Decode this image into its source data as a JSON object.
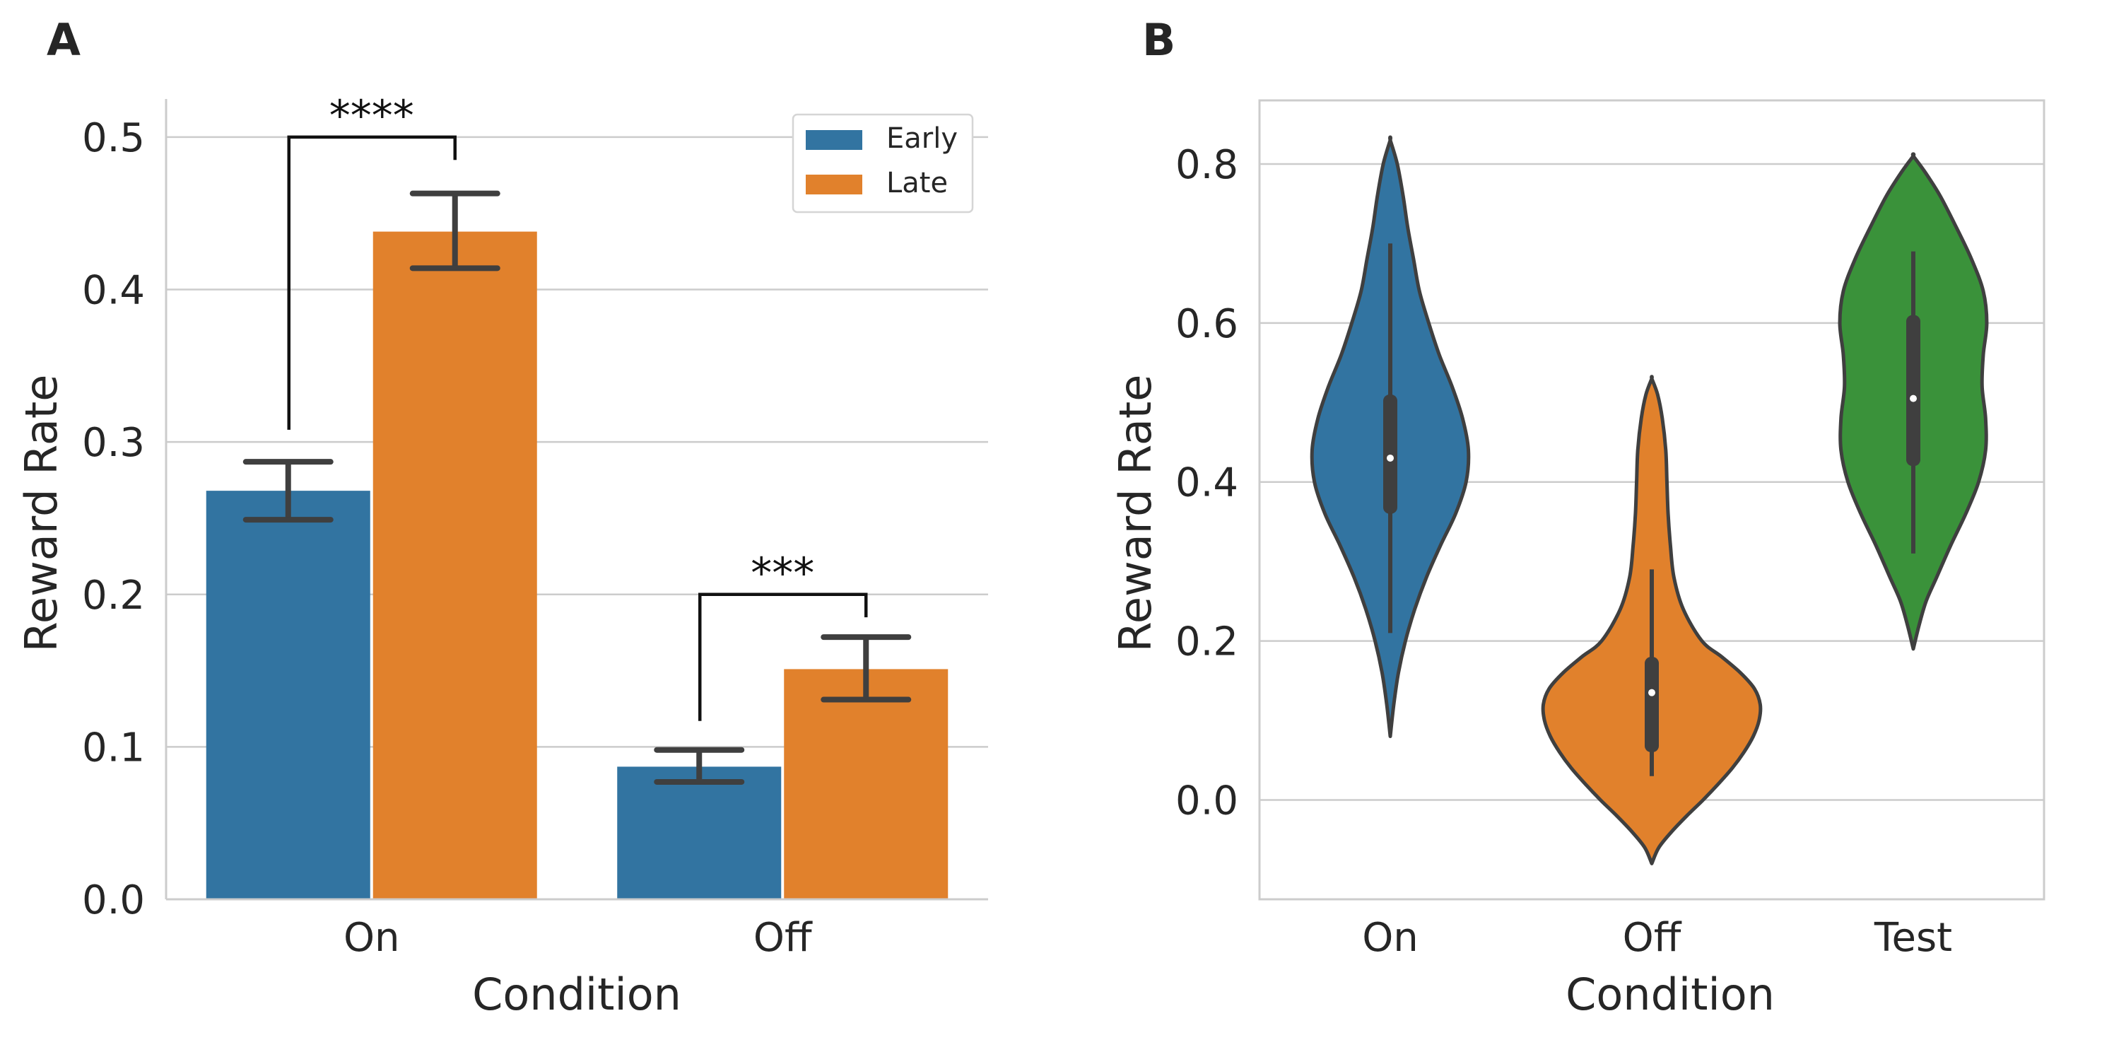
{
  "panels": {
    "a_label": "A",
    "b_label": "B"
  },
  "chart_data": [
    {
      "type": "bar",
      "panel": "A",
      "xlabel": "Condition",
      "ylabel": "Reward Rate",
      "ylim": [
        0,
        0.525
      ],
      "yticks": [
        "0.0",
        "0.1",
        "0.2",
        "0.3",
        "0.4",
        "0.5"
      ],
      "grid": "horizontal",
      "legend_position": "top-right",
      "categories": [
        "On",
        "Off"
      ],
      "series": [
        {
          "name": "Early",
          "color": "#3274a1",
          "values": [
            0.268,
            0.087
          ],
          "err_low": [
            0.249,
            0.077
          ],
          "err_high": [
            0.287,
            0.098
          ]
        },
        {
          "name": "Late",
          "color": "#e1812c",
          "values": [
            0.438,
            0.151
          ],
          "err_low": [
            0.414,
            0.131
          ],
          "err_high": [
            0.463,
            0.172
          ]
        }
      ],
      "significance": [
        {
          "category": "On",
          "label": "****",
          "bracket_y": 0.5,
          "left_y": 0.308,
          "right_y": 0.485
        },
        {
          "category": "Off",
          "label": "***",
          "bracket_y": 0.2,
          "left_y": 0.117,
          "right_y": 0.185
        }
      ]
    },
    {
      "type": "violin",
      "panel": "B",
      "xlabel": "Condition",
      "ylabel": "Reward Rate",
      "ylim": [
        -0.125,
        0.88
      ],
      "yticks": [
        "0.0",
        "0.2",
        "0.4",
        "0.6",
        "0.8"
      ],
      "grid": "horizontal",
      "categories": [
        "On",
        "Off",
        "Test"
      ],
      "colors": [
        "#3274a1",
        "#e1812c",
        "#3a923a"
      ],
      "violins": [
        {
          "name": "On",
          "min_extent": 0.08,
          "max_extent": 0.83,
          "whisker": [
            0.21,
            0.7
          ],
          "box": [
            0.36,
            0.51
          ],
          "median": 0.43,
          "profile": [
            [
              0.08,
              0.0
            ],
            [
              0.12,
              0.03
            ],
            [
              0.16,
              0.07
            ],
            [
              0.2,
              0.13
            ],
            [
              0.24,
              0.21
            ],
            [
              0.28,
              0.31
            ],
            [
              0.32,
              0.43
            ],
            [
              0.36,
              0.56
            ],
            [
              0.4,
              0.65
            ],
            [
              0.44,
              0.67
            ],
            [
              0.48,
              0.62
            ],
            [
              0.52,
              0.53
            ],
            [
              0.56,
              0.42
            ],
            [
              0.6,
              0.33
            ],
            [
              0.64,
              0.25
            ],
            [
              0.68,
              0.2
            ],
            [
              0.72,
              0.15
            ],
            [
              0.76,
              0.11
            ],
            [
              0.8,
              0.06
            ],
            [
              0.83,
              0.0
            ]
          ]
        },
        {
          "name": "Off",
          "min_extent": -0.08,
          "max_extent": 0.53,
          "whisker": [
            0.03,
            0.29
          ],
          "box": [
            0.06,
            0.18
          ],
          "median": 0.135,
          "profile": [
            [
              -0.08,
              0.0
            ],
            [
              -0.06,
              0.06
            ],
            [
              -0.04,
              0.17
            ],
            [
              -0.02,
              0.3
            ],
            [
              0.0,
              0.44
            ],
            [
              0.02,
              0.57
            ],
            [
              0.04,
              0.69
            ],
            [
              0.06,
              0.79
            ],
            [
              0.08,
              0.87
            ],
            [
              0.1,
              0.92
            ],
            [
              0.12,
              0.93
            ],
            [
              0.14,
              0.88
            ],
            [
              0.16,
              0.76
            ],
            [
              0.18,
              0.6
            ],
            [
              0.2,
              0.43
            ],
            [
              0.24,
              0.27
            ],
            [
              0.28,
              0.19
            ],
            [
              0.32,
              0.16
            ],
            [
              0.36,
              0.14
            ],
            [
              0.4,
              0.13
            ],
            [
              0.44,
              0.12
            ],
            [
              0.48,
              0.09
            ],
            [
              0.51,
              0.05
            ],
            [
              0.53,
              0.0
            ]
          ]
        },
        {
          "name": "Test",
          "min_extent": 0.19,
          "max_extent": 0.81,
          "whisker": [
            0.31,
            0.69
          ],
          "box": [
            0.42,
            0.61
          ],
          "median": 0.505,
          "profile": [
            [
              0.19,
              0.0
            ],
            [
              0.22,
              0.05
            ],
            [
              0.25,
              0.11
            ],
            [
              0.28,
              0.2
            ],
            [
              0.32,
              0.32
            ],
            [
              0.36,
              0.45
            ],
            [
              0.4,
              0.56
            ],
            [
              0.44,
              0.62
            ],
            [
              0.48,
              0.62
            ],
            [
              0.52,
              0.59
            ],
            [
              0.56,
              0.6
            ],
            [
              0.6,
              0.63
            ],
            [
              0.64,
              0.6
            ],
            [
              0.68,
              0.5
            ],
            [
              0.72,
              0.37
            ],
            [
              0.76,
              0.23
            ],
            [
              0.79,
              0.1
            ],
            [
              0.81,
              0.0
            ]
          ]
        }
      ]
    }
  ]
}
